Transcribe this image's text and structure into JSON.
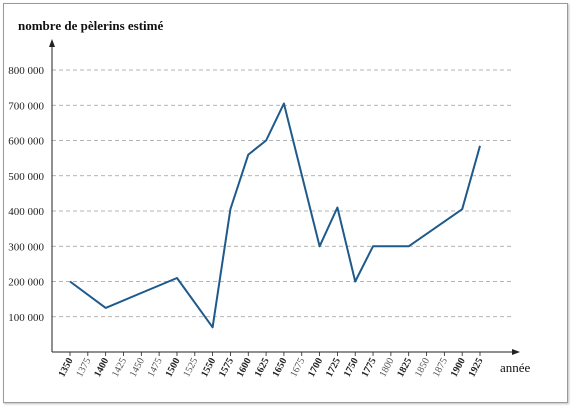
{
  "chart_data": {
    "type": "line",
    "title": "nombre de pèlerins estimé",
    "xlabel": "année",
    "ylabel": "nombre de pèlerins estimé",
    "ylim": [
      0,
      850000
    ],
    "xlim": [
      1350,
      1925
    ],
    "grid": true,
    "y_ticks": [
      100000,
      200000,
      300000,
      400000,
      500000,
      600000,
      700000,
      800000
    ],
    "y_tick_labels": [
      "100 000",
      "200 000",
      "300 000",
      "400 000",
      "500 000",
      "600 000",
      "700 000",
      "800 000"
    ],
    "x_ticks": [
      1350,
      1375,
      1400,
      1425,
      1450,
      1475,
      1500,
      1525,
      1550,
      1575,
      1600,
      1625,
      1650,
      1675,
      1700,
      1725,
      1750,
      1775,
      1800,
      1825,
      1850,
      1875,
      1900,
      1925
    ],
    "x_tick_labels": [
      "1350",
      "1375",
      "1400",
      "1425",
      "1450",
      "1475",
      "1500",
      "1525",
      "1550",
      "1575",
      "1600",
      "1625",
      "1650",
      "1675",
      "1700",
      "1725",
      "1750",
      "1775",
      "1800",
      "1825",
      "1850",
      "1875",
      "1900",
      "1925"
    ],
    "x_tick_bold": [
      true,
      false,
      true,
      false,
      false,
      false,
      true,
      false,
      true,
      true,
      true,
      true,
      true,
      false,
      true,
      true,
      true,
      true,
      false,
      true,
      false,
      false,
      true,
      true
    ],
    "series": [
      {
        "x": [
          1350,
          1400,
          1500,
          1550,
          1575,
          1600,
          1625,
          1650,
          1700,
          1725,
          1750,
          1775,
          1825,
          1900,
          1925
        ],
        "values": [
          200000,
          125000,
          210000,
          70000,
          405000,
          560000,
          600000,
          705000,
          300000,
          410000,
          200000,
          300000,
          300000,
          405000,
          585000
        ],
        "color": "#1f5a8c"
      }
    ]
  }
}
